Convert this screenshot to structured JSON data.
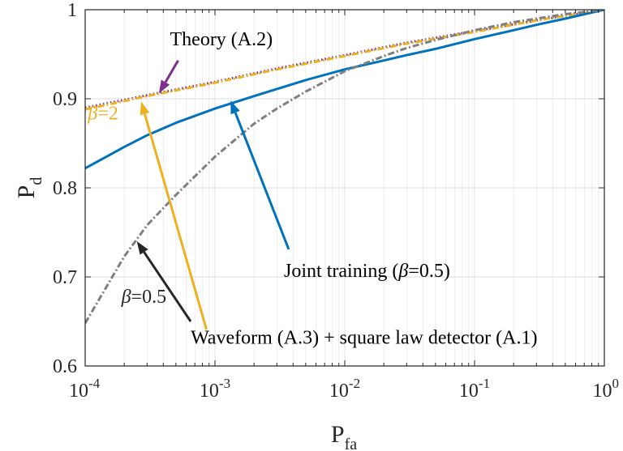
{
  "chart_data": {
    "type": "line",
    "xscale": "log",
    "xlim": [
      0.0001,
      1
    ],
    "ylim": [
      0.6,
      1
    ],
    "grid": true,
    "xlabel": {
      "main": "P",
      "sub": "fa"
    },
    "ylabel": {
      "main": "P",
      "sub": "d"
    },
    "x_ticks": [
      {
        "base": "10",
        "exp": "-4",
        "value": 0.0001
      },
      {
        "base": "10",
        "exp": "-3",
        "value": 0.001
      },
      {
        "base": "10",
        "exp": "-2",
        "value": 0.01
      },
      {
        "base": "10",
        "exp": "-1",
        "value": 0.1
      },
      {
        "base": "10",
        "exp": "0",
        "value": 1
      }
    ],
    "y_ticks": [
      {
        "label": "0.6",
        "value": 0.6
      },
      {
        "label": "0.7",
        "value": 0.7
      },
      {
        "label": "0.8",
        "value": 0.8
      },
      {
        "label": "0.9",
        "value": 0.9
      },
      {
        "label": "1",
        "value": 1.0
      }
    ],
    "series": [
      {
        "key": "theory",
        "color": "#7E2F8E",
        "style": "dotted",
        "x": [
          0.0001,
          0.0003,
          0.001,
          0.003,
          0.01,
          0.03,
          0.1,
          0.3,
          1
        ],
        "y": [
          0.89,
          0.904,
          0.919,
          0.934,
          0.949,
          0.963,
          0.976,
          0.988,
          1.0
        ]
      },
      {
        "key": "beta2",
        "color": "#EDB120",
        "style": "dashdot",
        "x": [
          0.0001,
          0.0003,
          0.001,
          0.003,
          0.01,
          0.03,
          0.1,
          0.3,
          1
        ],
        "y": [
          0.888,
          0.903,
          0.918,
          0.933,
          0.948,
          0.962,
          0.975,
          0.988,
          1.0
        ]
      },
      {
        "key": "joint",
        "color": "#0072BD",
        "style": "solid",
        "x": [
          0.0001,
          0.00015,
          0.0002,
          0.0003,
          0.0005,
          0.001,
          0.002,
          0.003,
          0.005,
          0.01,
          0.02,
          0.03,
          0.05,
          0.1,
          0.2,
          0.3,
          0.5,
          1
        ],
        "y": [
          0.822,
          0.836,
          0.846,
          0.859,
          0.873,
          0.889,
          0.903,
          0.911,
          0.921,
          0.933,
          0.943,
          0.949,
          0.956,
          0.967,
          0.977,
          0.983,
          0.99,
          1.0
        ]
      },
      {
        "key": "beta05",
        "color": "#7F7F7F",
        "style": "dashdot",
        "x": [
          0.0001,
          0.00015,
          0.0002,
          0.0003,
          0.0005,
          0.001,
          0.002,
          0.003,
          0.005,
          0.01,
          0.02,
          0.03,
          0.05,
          0.1,
          0.2,
          0.3,
          0.5,
          1
        ],
        "y": [
          0.648,
          0.692,
          0.723,
          0.758,
          0.792,
          0.835,
          0.872,
          0.889,
          0.908,
          0.931,
          0.948,
          0.957,
          0.966,
          0.977,
          0.986,
          0.99,
          0.995,
          1.0
        ]
      }
    ],
    "annotations": [
      {
        "key": "theory_label",
        "parts": [
          {
            "text": "Theory (A.2)",
            "italic": false
          }
        ],
        "color": "#000000",
        "text_at": [
          0.00045,
          0.96
        ],
        "anchor": "start",
        "arrow": {
          "color": "#7E2F8E",
          "from": [
            0.00052,
            0.943
          ],
          "to": [
            0.00037,
            0.906
          ]
        }
      },
      {
        "key": "beta2_label",
        "parts": [
          {
            "text": "β",
            "italic": true
          },
          {
            "text": "=2",
            "italic": false
          }
        ],
        "color": "#EDB120",
        "text_at": [
          0.000105,
          0.877
        ],
        "anchor": "start",
        "arrow": null
      },
      {
        "key": "joint_label",
        "parts": [
          {
            "text": "Joint training (",
            "italic": false
          },
          {
            "text": "β",
            "italic": true
          },
          {
            "text": "=0.5)",
            "italic": false
          }
        ],
        "color": "#000000",
        "text_at": [
          0.0034,
          0.7
        ],
        "anchor": "start",
        "arrow": {
          "color": "#0072BD",
          "from": [
            0.0037,
            0.731
          ],
          "to": [
            0.00132,
            0.898
          ]
        }
      },
      {
        "key": "beta05_label",
        "parts": [
          {
            "text": "β",
            "italic": true
          },
          {
            "text": "=0.5",
            "italic": false
          }
        ],
        "color": "#262626",
        "text_at": [
          0.00019,
          0.671
        ],
        "anchor": "start",
        "arrow": {
          "color": "#262626",
          "from": [
            0.00065,
            0.65
          ],
          "to": [
            0.00025,
            0.74
          ]
        }
      },
      {
        "key": "waveform_label",
        "parts": [
          {
            "text": "Waveform (A.3) + square law detector (A.1)",
            "italic": false
          }
        ],
        "color": "#000000",
        "text_at": [
          0.00065,
          0.625
        ],
        "anchor": "start",
        "arrow": {
          "color": "#EDB120",
          "from": [
            0.00086,
            0.641
          ],
          "to": [
            0.00027,
            0.897
          ]
        }
      }
    ]
  }
}
